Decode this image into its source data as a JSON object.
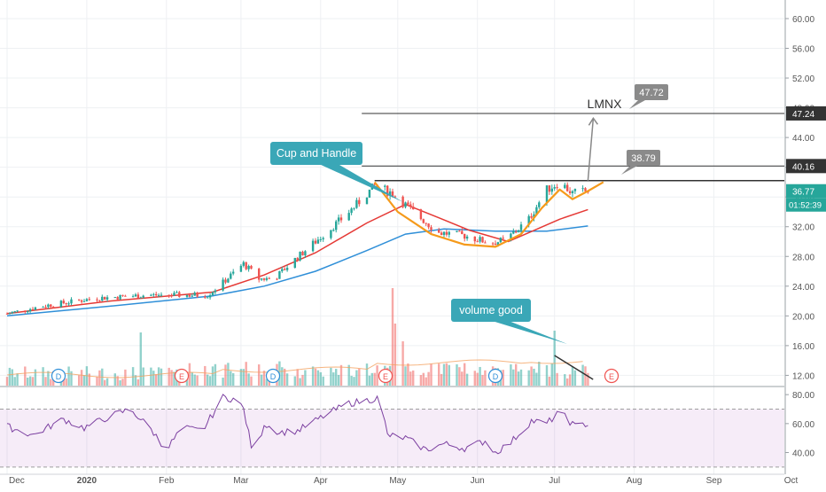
{
  "chart_data": {
    "type": "candlestick",
    "ticker": "LMNX",
    "x_ticks": [
      "Dec",
      "2020",
      "Feb",
      "Mar",
      "Apr",
      "May",
      "Jun",
      "Jul",
      "Aug",
      "Sep",
      "Oct"
    ],
    "y_ticks": [
      "60.00",
      "56.00",
      "52.00",
      "48.00",
      "44.00",
      "40.00",
      "36.00",
      "32.00",
      "28.00",
      "24.00",
      "20.00",
      "16.00",
      "12.00"
    ],
    "ylim": [
      10.5,
      62.5
    ],
    "last_price": "36.77",
    "countdown": "01:52:39",
    "levels": [
      {
        "label": "47.24",
        "value": 47.24,
        "from": "Apr-30"
      },
      {
        "label": "40.16",
        "value": 40.16,
        "from": "Apr-30"
      },
      {
        "label": "",
        "value": 38.2,
        "from": "May-03"
      }
    ],
    "callouts": [
      {
        "label": "47.72",
        "value": 47.72
      },
      {
        "label": "38.79",
        "value": 38.79
      }
    ],
    "annotations": [
      "Cup and Handle",
      "volume good"
    ],
    "events": [
      "D",
      "E",
      "D",
      "E",
      "D",
      "E",
      "E"
    ],
    "price_anchors": [
      {
        "d": 0,
        "v": 20.3
      },
      {
        "d": 15,
        "v": 21.4
      },
      {
        "d": 35,
        "v": 22.4
      },
      {
        "d": 55,
        "v": 22.8
      },
      {
        "d": 78,
        "v": 22.8
      },
      {
        "d": 84,
        "v": 24.5
      },
      {
        "d": 92,
        "v": 27.0
      },
      {
        "d": 98,
        "v": 25.0
      },
      {
        "d": 104,
        "v": 25.0
      },
      {
        "d": 110,
        "v": 27.0
      },
      {
        "d": 120,
        "v": 30.0
      },
      {
        "d": 130,
        "v": 33.0
      },
      {
        "d": 136,
        "v": 35.0
      },
      {
        "d": 143,
        "v": 37.5
      },
      {
        "d": 150,
        "v": 36.5
      },
      {
        "d": 158,
        "v": 34.0
      },
      {
        "d": 168,
        "v": 31.2
      },
      {
        "d": 178,
        "v": 30.8
      },
      {
        "d": 188,
        "v": 29.8
      },
      {
        "d": 194,
        "v": 30.2
      },
      {
        "d": 203,
        "v": 33.0
      },
      {
        "d": 210,
        "v": 37.0
      },
      {
        "d": 215,
        "v": 38.0
      },
      {
        "d": 220,
        "v": 36.5
      },
      {
        "d": 226,
        "v": 36.8
      }
    ],
    "ma20": [
      {
        "d": 0,
        "v": 20.3
      },
      {
        "d": 40,
        "v": 22.0
      },
      {
        "d": 80,
        "v": 23.2
      },
      {
        "d": 100,
        "v": 25.5
      },
      {
        "d": 120,
        "v": 28.5
      },
      {
        "d": 140,
        "v": 32.5
      },
      {
        "d": 155,
        "v": 35.0
      },
      {
        "d": 168,
        "v": 33.2
      },
      {
        "d": 180,
        "v": 31.5
      },
      {
        "d": 195,
        "v": 30.0
      },
      {
        "d": 205,
        "v": 31.5
      },
      {
        "d": 215,
        "v": 33.0
      },
      {
        "d": 226,
        "v": 34.3
      }
    ],
    "ma50": [
      {
        "d": 0,
        "v": 20.0
      },
      {
        "d": 40,
        "v": 21.3
      },
      {
        "d": 80,
        "v": 22.7
      },
      {
        "d": 100,
        "v": 24.0
      },
      {
        "d": 120,
        "v": 26.0
      },
      {
        "d": 140,
        "v": 28.8
      },
      {
        "d": 155,
        "v": 31.0
      },
      {
        "d": 170,
        "v": 31.7
      },
      {
        "d": 190,
        "v": 31.4
      },
      {
        "d": 210,
        "v": 31.4
      },
      {
        "d": 226,
        "v": 32.1
      }
    ],
    "pattern_cup": [
      {
        "d": 143,
        "v": 38.0
      },
      {
        "d": 152,
        "v": 34.0
      },
      {
        "d": 165,
        "v": 31.0
      },
      {
        "d": 178,
        "v": 29.6
      },
      {
        "d": 190,
        "v": 29.3
      },
      {
        "d": 200,
        "v": 31.0
      },
      {
        "d": 208,
        "v": 34.5
      },
      {
        "d": 215,
        "v": 37.0
      },
      {
        "d": 220,
        "v": 35.7
      },
      {
        "d": 226,
        "v": 36.8
      },
      {
        "d": 232,
        "v": 38.0
      }
    ],
    "rsi": {
      "ylim": [
        25,
        85
      ],
      "y_ticks": [
        "80.00",
        "60.00",
        "40.00"
      ],
      "band": [
        30,
        70
      ],
      "anchors": [
        {
          "d": 0,
          "v": 58
        },
        {
          "d": 10,
          "v": 52
        },
        {
          "d": 22,
          "v": 63
        },
        {
          "d": 30,
          "v": 57
        },
        {
          "d": 40,
          "v": 65
        },
        {
          "d": 48,
          "v": 70
        },
        {
          "d": 56,
          "v": 56
        },
        {
          "d": 62,
          "v": 42
        },
        {
          "d": 68,
          "v": 57
        },
        {
          "d": 76,
          "v": 55
        },
        {
          "d": 84,
          "v": 78
        },
        {
          "d": 89,
          "v": 77
        },
        {
          "d": 92,
          "v": 70
        },
        {
          "d": 96,
          "v": 36
        },
        {
          "d": 100,
          "v": 60
        },
        {
          "d": 106,
          "v": 54
        },
        {
          "d": 113,
          "v": 55
        },
        {
          "d": 120,
          "v": 62
        },
        {
          "d": 126,
          "v": 68
        },
        {
          "d": 133,
          "v": 74
        },
        {
          "d": 140,
          "v": 76
        },
        {
          "d": 145,
          "v": 78
        },
        {
          "d": 148,
          "v": 52
        },
        {
          "d": 155,
          "v": 50
        },
        {
          "d": 163,
          "v": 42
        },
        {
          "d": 170,
          "v": 46
        },
        {
          "d": 178,
          "v": 43
        },
        {
          "d": 186,
          "v": 48
        },
        {
          "d": 190,
          "v": 40
        },
        {
          "d": 196,
          "v": 47
        },
        {
          "d": 204,
          "v": 62
        },
        {
          "d": 210,
          "v": 60
        },
        {
          "d": 215,
          "v": 68
        },
        {
          "d": 221,
          "v": 58
        },
        {
          "d": 226,
          "v": 60
        }
      ]
    }
  }
}
